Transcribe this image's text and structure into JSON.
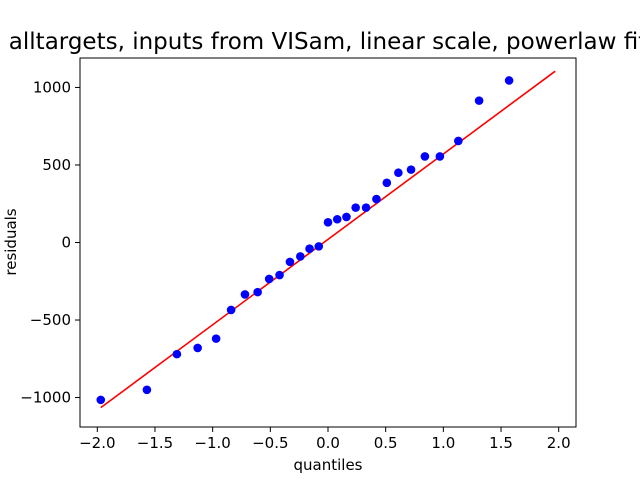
{
  "chart_data": {
    "type": "scatter",
    "title": "alltargets, inputs from VISam, linear scale, powerlaw fit",
    "xlabel": "quantiles",
    "ylabel": "residuals",
    "xlim": [
      -2.15,
      2.15
    ],
    "ylim": [
      -1190,
      1190
    ],
    "xticks": [
      -2.0,
      -1.5,
      -1.0,
      -0.5,
      0.0,
      0.5,
      1.0,
      1.5,
      2.0
    ],
    "xtick_labels": [
      "−2.0",
      "−1.5",
      "−1.0",
      "−0.5",
      "0.0",
      "0.5",
      "1.0",
      "1.5",
      "2.0"
    ],
    "yticks": [
      -1000,
      -500,
      0,
      500,
      1000
    ],
    "ytick_labels": [
      "−1000",
      "−500",
      "0",
      "500",
      "1000"
    ],
    "grid": false,
    "series": [
      {
        "kind": "points",
        "color": "#0000ff",
        "points": [
          {
            "x": -1.97,
            "y": -1015
          },
          {
            "x": -1.57,
            "y": -950
          },
          {
            "x": -1.31,
            "y": -720
          },
          {
            "x": -1.13,
            "y": -680
          },
          {
            "x": -0.97,
            "y": -620
          },
          {
            "x": -0.84,
            "y": -435
          },
          {
            "x": -0.72,
            "y": -335
          },
          {
            "x": -0.61,
            "y": -320
          },
          {
            "x": -0.51,
            "y": -235
          },
          {
            "x": -0.42,
            "y": -210
          },
          {
            "x": -0.33,
            "y": -125
          },
          {
            "x": -0.24,
            "y": -90
          },
          {
            "x": -0.16,
            "y": -40
          },
          {
            "x": -0.08,
            "y": -25
          },
          {
            "x": 0.0,
            "y": 130
          },
          {
            "x": 0.08,
            "y": 150
          },
          {
            "x": 0.16,
            "y": 165
          },
          {
            "x": 0.24,
            "y": 225
          },
          {
            "x": 0.33,
            "y": 225
          },
          {
            "x": 0.42,
            "y": 280
          },
          {
            "x": 0.51,
            "y": 385
          },
          {
            "x": 0.61,
            "y": 450
          },
          {
            "x": 0.72,
            "y": 470
          },
          {
            "x": 0.84,
            "y": 555
          },
          {
            "x": 0.97,
            "y": 555
          },
          {
            "x": 1.13,
            "y": 655
          },
          {
            "x": 1.31,
            "y": 915
          },
          {
            "x": 1.57,
            "y": 1045
          }
        ]
      },
      {
        "kind": "line",
        "color": "#ff0000",
        "points": [
          {
            "x": -1.97,
            "y": -1065
          },
          {
            "x": 1.97,
            "y": 1105
          }
        ]
      }
    ]
  }
}
